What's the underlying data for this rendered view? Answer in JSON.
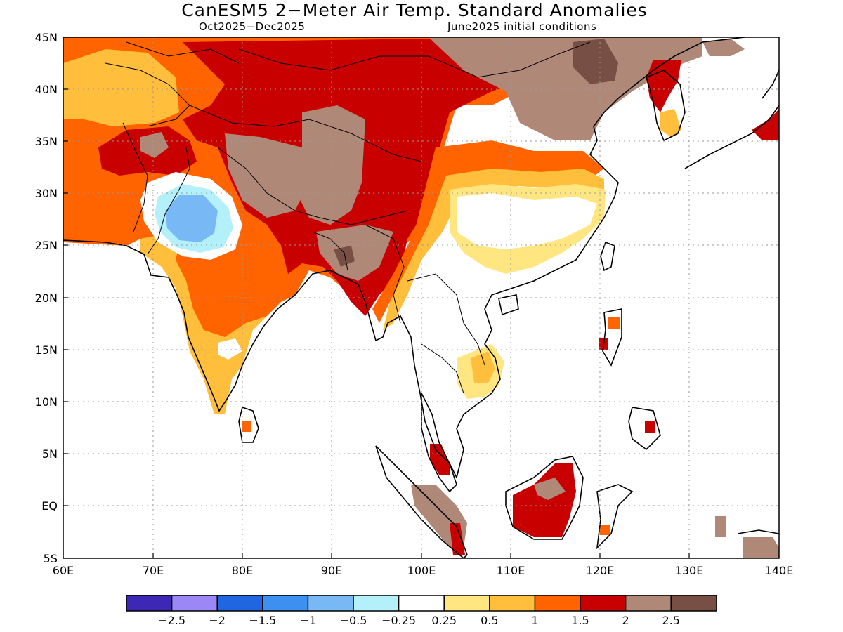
{
  "header": {
    "title": "CanESM5 2−Meter Air Temp. Standard Anomalies",
    "period": "Oct2025−Dec2025",
    "init": "June2025 initial conditions"
  },
  "axes": {
    "lat_labels": [
      "45N",
      "40N",
      "35N",
      "30N",
      "25N",
      "20N",
      "15N",
      "10N",
      "5N",
      "EQ",
      "5S"
    ],
    "lon_labels": [
      "60E",
      "70E",
      "80E",
      "90E",
      "100E",
      "110E",
      "120E",
      "130E",
      "140E"
    ]
  },
  "colorbar": {
    "colors": [
      "#3c28b4",
      "#9b87f5",
      "#2066e0",
      "#3d8ff0",
      "#78b8f5",
      "#b4f0fa",
      "#ffffff",
      "#ffe680",
      "#ffbe3c",
      "#ff6400",
      "#c80000",
      "#b08878",
      "#784f44"
    ],
    "labels": [
      "−2.5",
      "−2",
      "−1.5",
      "−1",
      "−0.5",
      "−0.25",
      "0.25",
      "0.5",
      "1",
      "1.5",
      "2",
      "2.5"
    ]
  },
  "legend_categories": [
    {
      "range": "< −2.5",
      "color": "#3c28b4"
    },
    {
      "range": "−2.5 to −2",
      "color": "#9b87f5"
    },
    {
      "range": "−2 to −1.5",
      "color": "#2066e0"
    },
    {
      "range": "−1.5 to −1",
      "color": "#3d8ff0"
    },
    {
      "range": "−1 to −0.5",
      "color": "#78b8f5"
    },
    {
      "range": "−0.5 to −0.25",
      "color": "#b4f0fa"
    },
    {
      "range": "−0.25 to 0.25",
      "color": "#ffffff"
    },
    {
      "range": "0.25 to 0.5",
      "color": "#ffe680"
    },
    {
      "range": "0.5 to 1",
      "color": "#ffbe3c"
    },
    {
      "range": "1 to 1.5",
      "color": "#ff6400"
    },
    {
      "range": "1.5 to 2",
      "color": "#c80000"
    },
    {
      "range": "2 to 2.5",
      "color": "#b08878"
    },
    {
      "range": "> 2.5",
      "color": "#784f44"
    }
  ]
}
